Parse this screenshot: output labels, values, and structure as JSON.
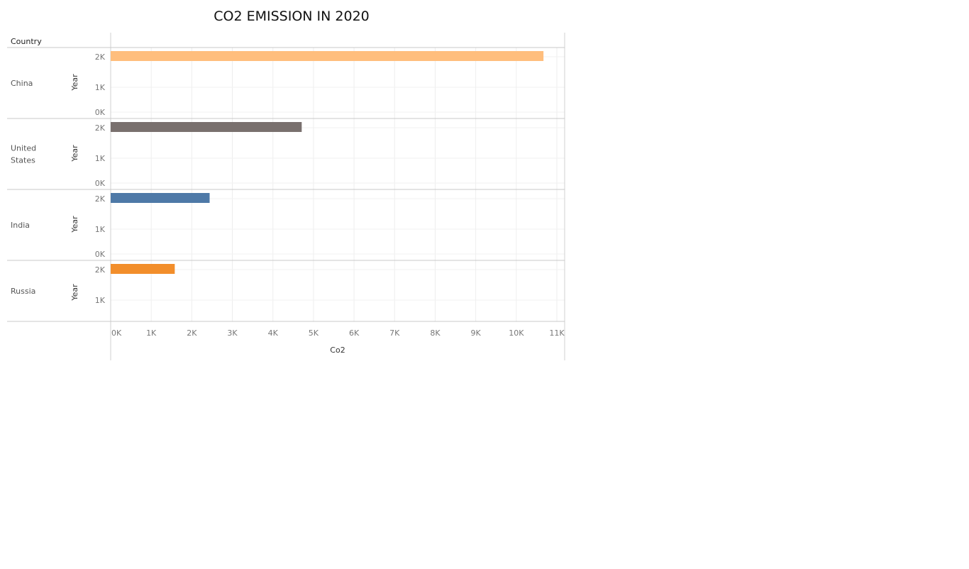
{
  "chart_data": {
    "type": "bar",
    "title": "CO2 EMISSION IN 2020",
    "row_header": "Country",
    "facet_axis_label": "Year",
    "xlabel": "Co2",
    "xlim": [
      0,
      11000
    ],
    "x_ticks": [
      "0K",
      "1K",
      "2K",
      "3K",
      "4K",
      "5K",
      "6K",
      "7K",
      "8K",
      "9K",
      "10K",
      "11K"
    ],
    "y_ticks_full": [
      "2K",
      "1K",
      "0K"
    ],
    "y_ticks_last": [
      "2K",
      "1K"
    ],
    "grid": true,
    "categories": [
      "China",
      "United States",
      "India",
      "Russia"
    ],
    "category_lines": [
      [
        "China"
      ],
      [
        "United",
        "States"
      ],
      [
        "India"
      ],
      [
        "Russia"
      ]
    ],
    "year": 2020,
    "values": [
      10670,
      4710,
      2440,
      1580
    ],
    "colors": [
      "#FFBE7D",
      "#79706E",
      "#4E79A7",
      "#F28E2B"
    ]
  }
}
